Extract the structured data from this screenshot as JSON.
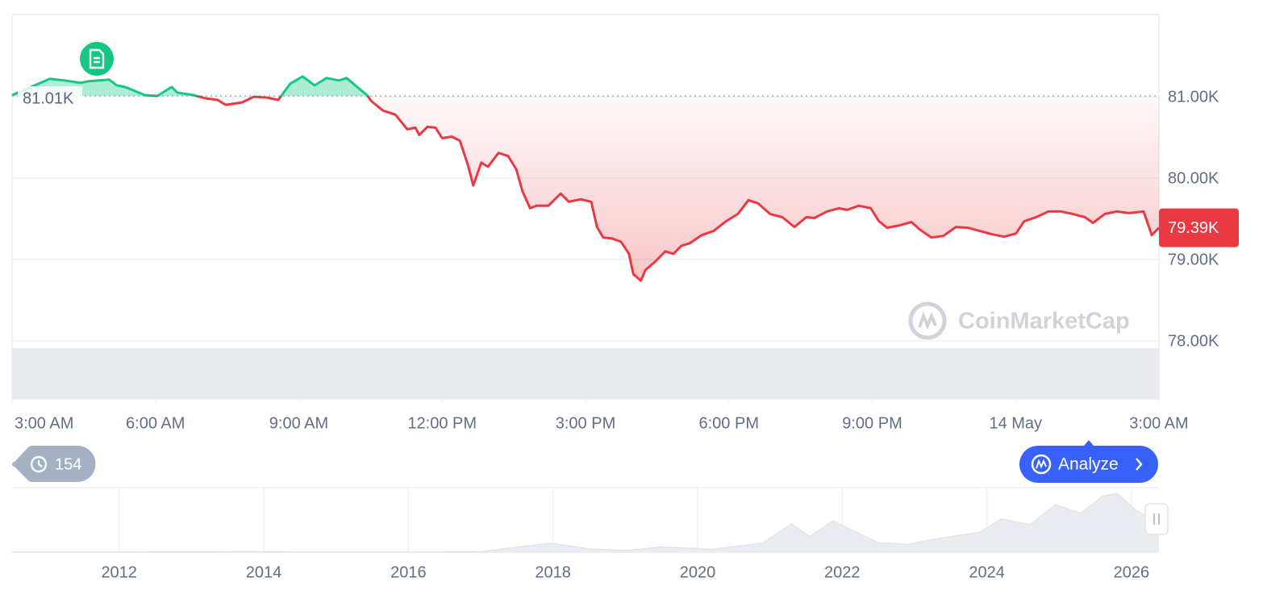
{
  "chart_data": [
    {
      "type": "line",
      "baseline": {
        "value": 81010,
        "label": "81.01K"
      },
      "last_price": {
        "value": 79390,
        "label": "79.39K"
      },
      "color_up": "#16c784",
      "color_down": "#ea3943",
      "xlim": [
        0,
        24
      ],
      "xticks": [
        {
          "value": 0,
          "label": "3:00 AM"
        },
        {
          "value": 3,
          "label": "6:00 AM"
        },
        {
          "value": 6,
          "label": "9:00 AM"
        },
        {
          "value": 9,
          "label": "12:00 PM"
        },
        {
          "value": 12,
          "label": "3:00 PM"
        },
        {
          "value": 15,
          "label": "6:00 PM"
        },
        {
          "value": 18,
          "label": "9:00 PM"
        },
        {
          "value": 21,
          "label": "14 May"
        },
        {
          "value": 24,
          "label": "3:00 AM"
        }
      ],
      "ylim": [
        77287,
        82010
      ],
      "yticks": [
        {
          "value": 78000,
          "label": "78.00K"
        },
        {
          "value": 79000,
          "label": "79.00K"
        },
        {
          "value": 80000,
          "label": "80.00K"
        },
        {
          "value": 81000,
          "label": "81.00K"
        }
      ],
      "grid": true,
      "x": [
        0,
        0.79,
        0.93,
        1.1,
        1.43,
        1.6,
        2.03,
        2.19,
        2.36,
        2.53,
        2.78,
        3.04,
        3.34,
        3.46,
        3.8,
        4.05,
        4.3,
        4.47,
        4.81,
        5.06,
        5.32,
        5.57,
        5.82,
        6.08,
        6.33,
        6.58,
        6.84,
        7.0,
        7.26,
        7.43,
        7.51,
        7.76,
        8.02,
        8.27,
        8.44,
        8.52,
        8.69,
        8.86,
        9.0,
        9.2,
        9.37,
        9.54,
        9.65,
        9.82,
        9.96,
        10.18,
        10.38,
        10.55,
        10.68,
        10.84,
        10.97,
        11.22,
        11.48,
        11.65,
        11.9,
        12.12,
        12.24,
        12.37,
        12.54,
        12.74,
        12.91,
        13.0,
        13.16,
        13.25,
        13.45,
        13.67,
        13.84,
        14.01,
        14.18,
        14.43,
        14.68,
        14.94,
        15.19,
        15.41,
        15.61,
        15.86,
        16.12,
        16.37,
        16.62,
        16.79,
        17.05,
        17.3,
        17.47,
        17.72,
        17.97,
        18.14,
        18.31,
        18.57,
        18.82,
        18.99,
        19.24,
        19.49,
        19.75,
        20.0,
        20.25,
        20.51,
        20.76,
        21.01,
        21.18,
        21.43,
        21.69,
        21.94,
        22.19,
        22.45,
        22.62,
        22.87,
        23.12,
        23.38,
        23.68,
        23.85,
        24.0
      ],
      "values": [
        81020,
        81220,
        81210,
        81200,
        81170,
        81190,
        81210,
        81140,
        81120,
        81080,
        81020,
        81010,
        81120,
        81050,
        81020,
        80980,
        80960,
        80900,
        80930,
        81000,
        80990,
        80960,
        81160,
        81250,
        81140,
        81230,
        81200,
        81230,
        81100,
        81020,
        80950,
        80830,
        80780,
        80600,
        80620,
        80530,
        80630,
        80620,
        80490,
        80510,
        80460,
        80160,
        79910,
        80190,
        80140,
        80310,
        80270,
        80110,
        79840,
        79630,
        79660,
        79660,
        79810,
        79710,
        79740,
        79710,
        79400,
        79270,
        79260,
        79220,
        79070,
        78820,
        78740,
        78870,
        78970,
        79100,
        79070,
        79170,
        79200,
        79300,
        79350,
        79470,
        79560,
        79730,
        79690,
        79560,
        79520,
        79400,
        79520,
        79510,
        79590,
        79630,
        79610,
        79660,
        79630,
        79470,
        79390,
        79420,
        79460,
        79370,
        79270,
        79290,
        79400,
        79390,
        79350,
        79310,
        79280,
        79320,
        79470,
        79520,
        79590,
        79590,
        79560,
        79520,
        79450,
        79560,
        79590,
        79570,
        79590,
        79300,
        79390
      ]
    },
    {
      "type": "area",
      "color": "#e9ecf0",
      "xlim": [
        2010.52,
        2026.38
      ],
      "xticks": [
        2012,
        2014,
        2016,
        2018,
        2020,
        2022,
        2024,
        2026
      ],
      "ylim": [
        0,
        136000
      ],
      "x": [
        2010.52,
        2013.9,
        2014.5,
        2016.0,
        2017.0,
        2017.96,
        2018.5,
        2019.0,
        2019.5,
        2020.2,
        2020.9,
        2021.3,
        2021.55,
        2021.87,
        2022.5,
        2022.9,
        2023.3,
        2023.9,
        2024.2,
        2024.6,
        2024.95,
        2025.3,
        2025.6,
        2025.8,
        2026.05,
        2026.2,
        2026.38
      ],
      "values": [
        0,
        1000,
        500,
        400,
        1000,
        19000,
        7000,
        3500,
        11000,
        6000,
        19000,
        60000,
        33000,
        66000,
        20000,
        16500,
        28000,
        42000,
        70000,
        58000,
        100000,
        82000,
        118000,
        124000,
        90000,
        76000,
        79000
      ]
    }
  ],
  "history_count": 154,
  "analyze_button": "Analyze",
  "watermark": "CoinMarketCap"
}
